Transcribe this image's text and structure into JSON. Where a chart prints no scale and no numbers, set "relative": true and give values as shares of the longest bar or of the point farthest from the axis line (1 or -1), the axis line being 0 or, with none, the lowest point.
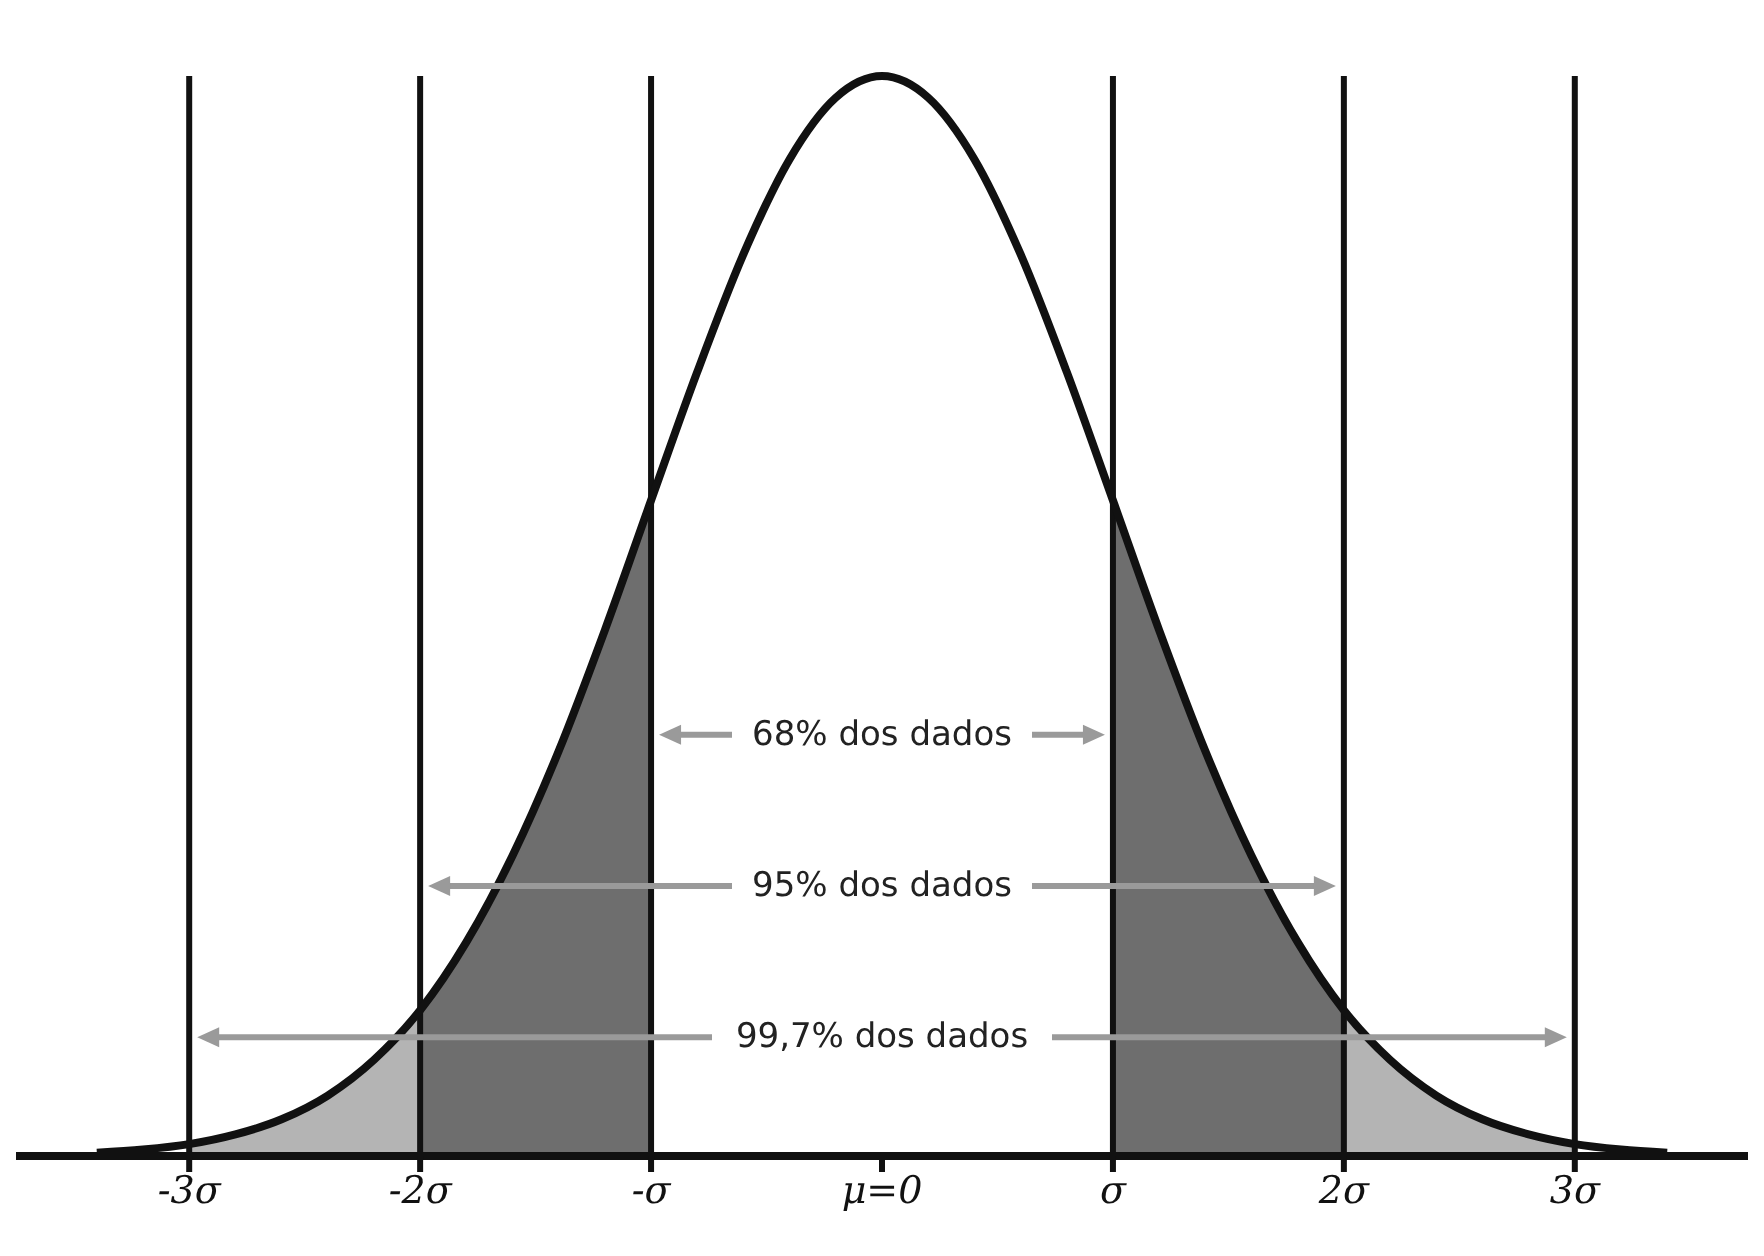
{
  "chart_data": {
    "type": "line",
    "relative": true,
    "legend": false,
    "grid": false,
    "marker": "none",
    "xlim": [
      -3.75,
      3.75
    ],
    "xticks": [
      {
        "value": -3,
        "label": "-3σ"
      },
      {
        "value": -2,
        "label": "-2σ"
      },
      {
        "value": -1,
        "label": "-σ"
      },
      {
        "value": 0,
        "label": "μ=0"
      },
      {
        "value": 1,
        "label": "σ"
      },
      {
        "value": 2,
        "label": "2σ"
      },
      {
        "value": 3,
        "label": "3σ"
      }
    ],
    "series": [
      {
        "type": "area",
        "color": "#b4b4b4",
        "x": [
          -3,
          -2.8,
          -2.6,
          -2.4,
          -2.2,
          -2,
          0,
          2,
          2.2,
          2.4,
          2.6,
          2.8,
          3
        ],
        "values": [
          0.011,
          0.02,
          0.034,
          0.056,
          0.089,
          0.135,
          null,
          0.135,
          0.089,
          0.056,
          0.034,
          0.02,
          0.011
        ]
      },
      {
        "type": "area",
        "color": "#6e6e6e",
        "x": [
          -2,
          -1.8,
          -1.6,
          -1.4,
          -1.2,
          -1,
          0,
          1,
          1.2,
          1.4,
          1.6,
          1.8,
          2
        ],
        "values": [
          0.135,
          0.198,
          0.278,
          0.375,
          0.487,
          0.607,
          null,
          0.607,
          0.487,
          0.375,
          0.278,
          0.198,
          0.135
        ]
      },
      {
        "color": "#111111",
        "x": [
          -3.4,
          -3.2,
          -3,
          -2.8,
          -2.6,
          -2.4,
          -2.2,
          -2,
          -1.8,
          -1.6,
          -1.4,
          -1.2,
          -1,
          -0.8,
          -0.6,
          -0.4,
          -0.2,
          0,
          0.2,
          0.4,
          0.6,
          0.8,
          1,
          1.2,
          1.4,
          1.6,
          1.8,
          2,
          2.2,
          2.4,
          2.6,
          2.8,
          3,
          3.2,
          3.4
        ],
        "values": [
          0.003,
          0.006,
          0.011,
          0.02,
          0.034,
          0.056,
          0.089,
          0.135,
          0.198,
          0.278,
          0.375,
          0.487,
          0.607,
          0.726,
          0.835,
          0.923,
          0.98,
          1,
          0.98,
          0.923,
          0.835,
          0.726,
          0.607,
          0.487,
          0.375,
          0.278,
          0.198,
          0.135,
          0.089,
          0.056,
          0.034,
          0.02,
          0.011,
          0.006,
          0.003
        ]
      }
    ],
    "ref_lines": [
      {
        "axis": "x",
        "value": -1,
        "color": "#111111"
      },
      {
        "axis": "x",
        "value": -2,
        "color": "#111111"
      },
      {
        "axis": "x",
        "value": -3,
        "color": "#111111"
      },
      {
        "axis": "x",
        "value": 1,
        "color": "#111111"
      },
      {
        "axis": "x",
        "value": 2,
        "color": "#111111"
      },
      {
        "axis": "x",
        "value": 3,
        "color": "#111111"
      }
    ],
    "annotations": [
      "68% dos dados",
      "95% dos dados",
      "99,7% dos dados"
    ]
  }
}
